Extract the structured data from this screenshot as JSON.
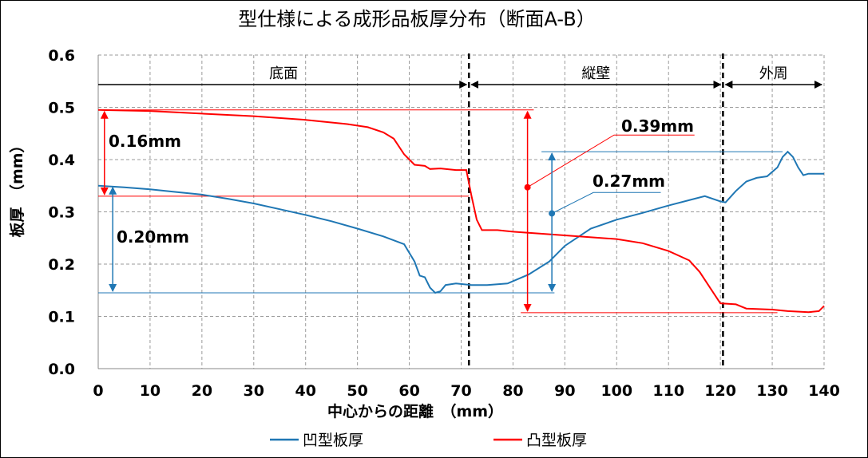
{
  "chart_data": {
    "type": "line",
    "title": "型仕様による成形品板厚分布（断面A-B）",
    "xlabel": "中心からの距離　（mm）",
    "ylabel": "板厚　（mm）",
    "xlim": [
      0,
      140
    ],
    "ylim": [
      0,
      0.6
    ],
    "x_ticks": [
      "0",
      "10",
      "20",
      "30",
      "40",
      "50",
      "60",
      "70",
      "80",
      "90",
      "100",
      "110",
      "120",
      "130",
      "140"
    ],
    "y_ticks": [
      "0.0",
      "0.1",
      "0.2",
      "0.3",
      "0.4",
      "0.5",
      "0.6"
    ],
    "grid": true,
    "legend_position": "bottom",
    "colors": {
      "blue": "#1f77b4",
      "red": "#ff0000"
    },
    "regions": [
      {
        "label": "底面",
        "from": 0,
        "to": 71.5
      },
      {
        "label": "縦壁",
        "from": 71.5,
        "to": 120.5
      },
      {
        "label": "外周",
        "from": 120.5,
        "to": 140
      }
    ],
    "boundaries": [
      71.5,
      120.5
    ],
    "series": [
      {
        "name": "凹型板厚",
        "color": "#1f77b4",
        "points": [
          [
            0,
            0.35
          ],
          [
            5,
            0.347
          ],
          [
            10,
            0.343
          ],
          [
            15,
            0.338
          ],
          [
            20,
            0.333
          ],
          [
            25,
            0.325
          ],
          [
            30,
            0.316
          ],
          [
            35,
            0.305
          ],
          [
            40,
            0.294
          ],
          [
            45,
            0.282
          ],
          [
            50,
            0.268
          ],
          [
            55,
            0.253
          ],
          [
            59,
            0.238
          ],
          [
            61,
            0.205
          ],
          [
            62,
            0.178
          ],
          [
            63,
            0.175
          ],
          [
            64,
            0.155
          ],
          [
            65,
            0.145
          ],
          [
            66,
            0.148
          ],
          [
            67,
            0.16
          ],
          [
            69,
            0.163
          ],
          [
            72,
            0.16
          ],
          [
            75,
            0.16
          ],
          [
            79,
            0.163
          ],
          [
            83,
            0.18
          ],
          [
            87,
            0.205
          ],
          [
            90,
            0.235
          ],
          [
            95,
            0.268
          ],
          [
            100,
            0.285
          ],
          [
            105,
            0.298
          ],
          [
            110,
            0.312
          ],
          [
            115,
            0.325
          ],
          [
            117,
            0.33
          ],
          [
            120,
            0.32
          ],
          [
            121,
            0.318
          ],
          [
            123,
            0.34
          ],
          [
            125,
            0.358
          ],
          [
            127,
            0.365
          ],
          [
            129,
            0.368
          ],
          [
            131,
            0.385
          ],
          [
            132,
            0.405
          ],
          [
            133,
            0.415
          ],
          [
            134,
            0.405
          ],
          [
            135,
            0.385
          ],
          [
            136,
            0.37
          ],
          [
            137,
            0.373
          ],
          [
            140,
            0.373
          ]
        ]
      },
      {
        "name": "凸型板厚",
        "color": "#ff0000",
        "points": [
          [
            0,
            0.495
          ],
          [
            10,
            0.493
          ],
          [
            20,
            0.488
          ],
          [
            30,
            0.483
          ],
          [
            40,
            0.476
          ],
          [
            48,
            0.468
          ],
          [
            52,
            0.462
          ],
          [
            55,
            0.452
          ],
          [
            57,
            0.44
          ],
          [
            59,
            0.41
          ],
          [
            61,
            0.39
          ],
          [
            63,
            0.388
          ],
          [
            64,
            0.382
          ],
          [
            66,
            0.383
          ],
          [
            69,
            0.38
          ],
          [
            71,
            0.38
          ],
          [
            72,
            0.33
          ],
          [
            73,
            0.285
          ],
          [
            74,
            0.265
          ],
          [
            77,
            0.265
          ],
          [
            80,
            0.262
          ],
          [
            90,
            0.255
          ],
          [
            100,
            0.248
          ],
          [
            105,
            0.24
          ],
          [
            110,
            0.225
          ],
          [
            114,
            0.207
          ],
          [
            116,
            0.185
          ],
          [
            119,
            0.14
          ],
          [
            120,
            0.125
          ],
          [
            123,
            0.123
          ],
          [
            125,
            0.115
          ],
          [
            130,
            0.113
          ],
          [
            133,
            0.11
          ],
          [
            137,
            0.108
          ],
          [
            139,
            0.11
          ],
          [
            140,
            0.12
          ]
        ]
      }
    ],
    "annotations": [
      {
        "text": "0.16mm",
        "color": "#ff0000",
        "x_arrow": 1.2,
        "y_from": 0.495,
        "y_to": 0.33,
        "ref_lines": [
          [
            0,
            84,
            0.495
          ],
          [
            0,
            71.5,
            0.33
          ]
        ]
      },
      {
        "text": "0.20mm",
        "color": "#1f77b4",
        "x_arrow": 2.8,
        "y_from": 0.35,
        "y_to": 0.145,
        "ref_lines": [
          [
            0,
            88,
            0.145
          ]
        ]
      },
      {
        "text": "0.39mm",
        "color": "#ff0000",
        "x_arrow": 82.8,
        "y_from": 0.495,
        "y_to": 0.107,
        "ref_lines": [
          [
            81.5,
            131,
            0.107
          ]
        ],
        "marker_y": 0.347,
        "leader": [
          [
            99.5,
            0.447
          ],
          [
            115,
            0.447
          ]
        ]
      },
      {
        "text": "0.27mm",
        "color": "#1f77b4",
        "x_arrow": 87.5,
        "y_from": 0.415,
        "y_to": 0.145,
        "ref_lines": [
          [
            85.5,
            132,
            0.415
          ]
        ],
        "marker_y": 0.297,
        "leader": [
          [
            95.5,
            0.337
          ],
          [
            108.5,
            0.337
          ]
        ]
      }
    ]
  }
}
